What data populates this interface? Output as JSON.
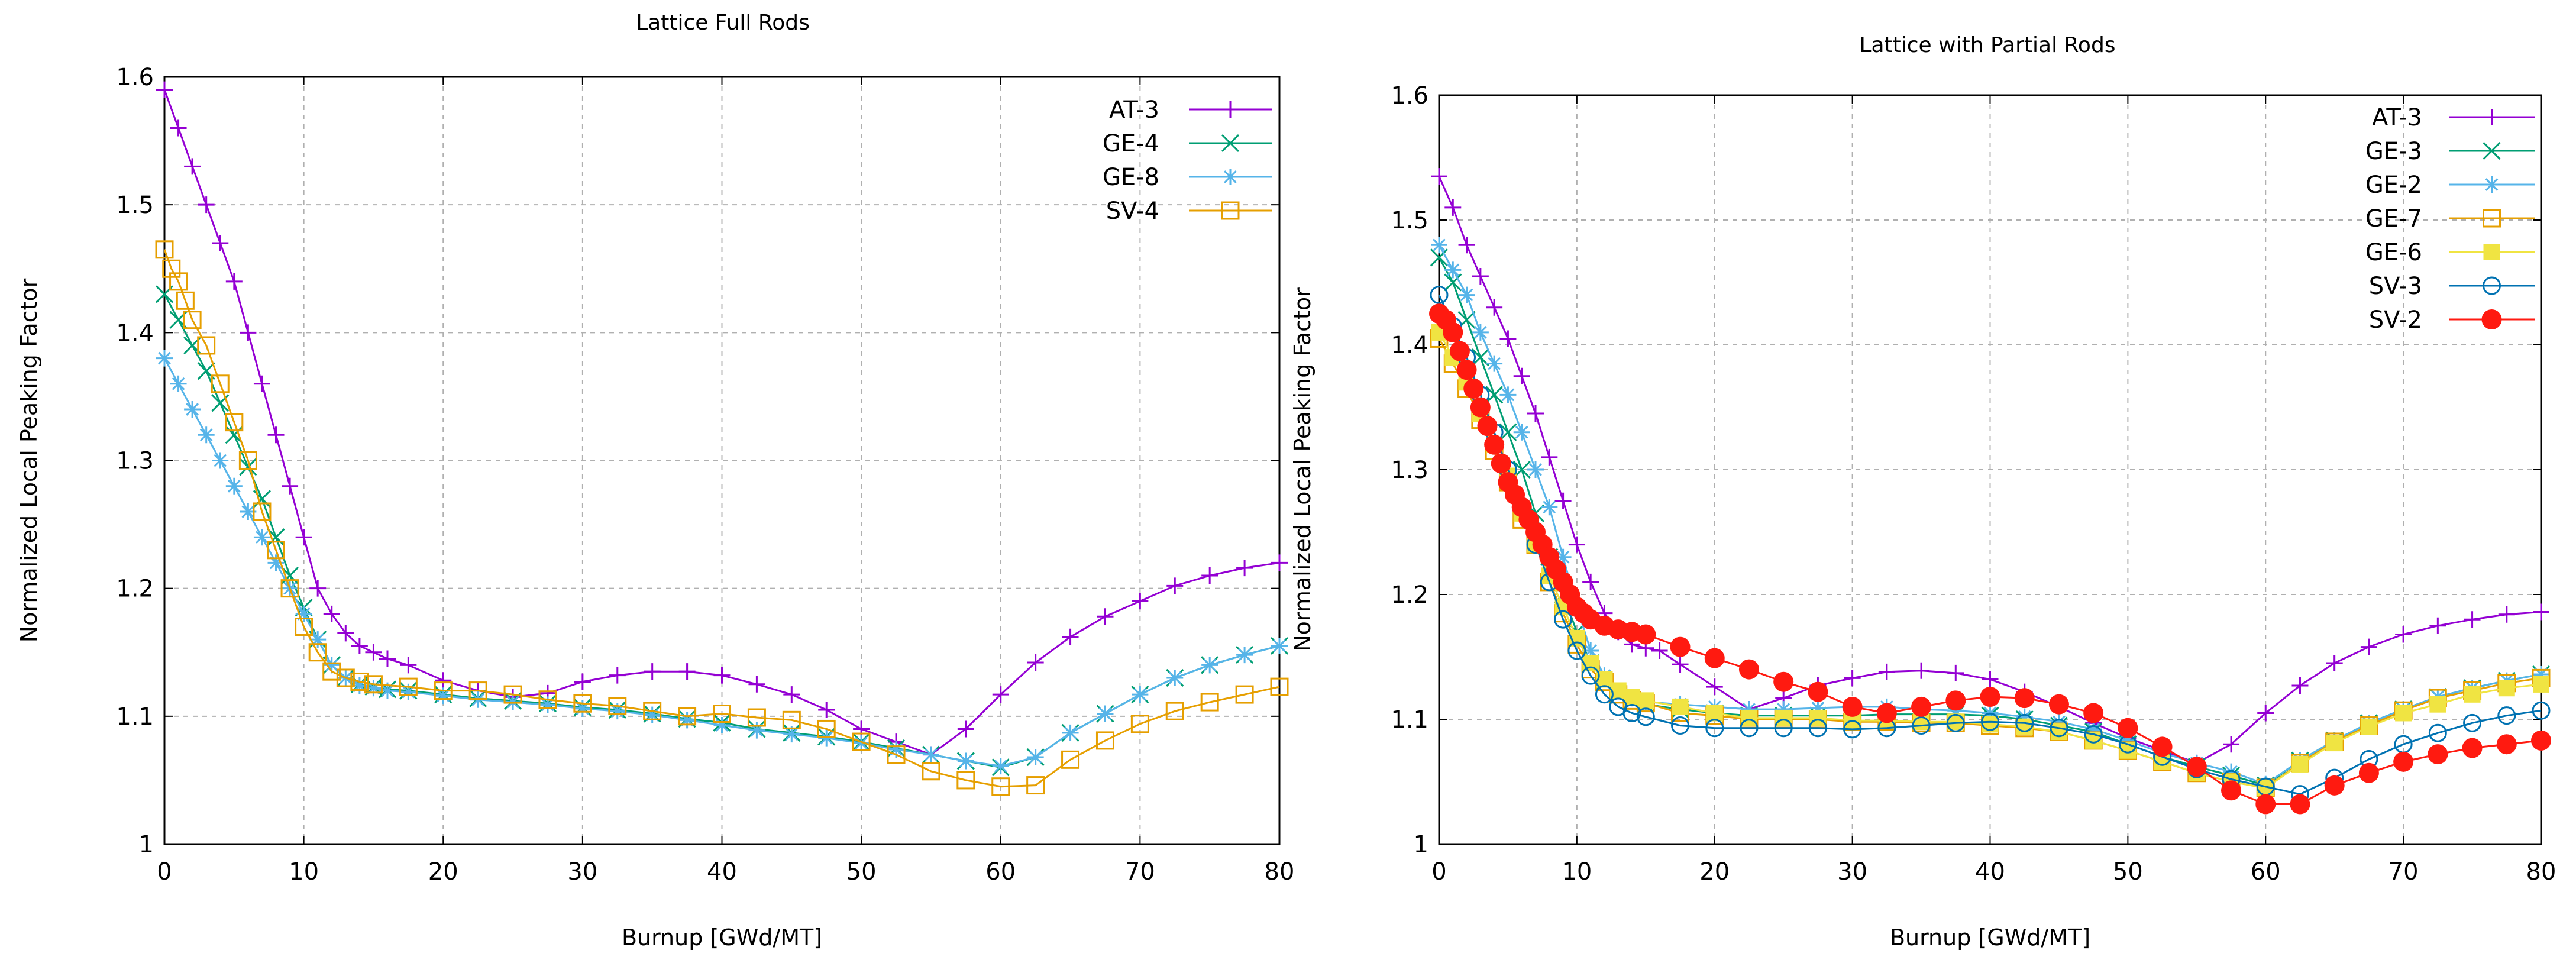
{
  "chart_data": [
    {
      "type": "line",
      "title": "Lattice Full Rods",
      "xlabel": "Burnup [GWd/MT]",
      "ylabel": "Normalized Local Peaking Factor",
      "xlim": [
        0,
        80
      ],
      "ylim": [
        1.0,
        1.6
      ],
      "xticks": [
        "0",
        "10",
        "20",
        "30",
        "40",
        "50",
        "60",
        "70",
        "80"
      ],
      "yticks": [
        "1",
        "1.1",
        "1.2",
        "1.3",
        "1.4",
        "1.5",
        "1.6"
      ],
      "grid": true,
      "legend_position": "top-right",
      "series": [
        {
          "name": "AT-3",
          "color": "#9400d3",
          "marker": "plus",
          "x": [
            0,
            1,
            2,
            3,
            4,
            5,
            6,
            7,
            8,
            9,
            10,
            11,
            12,
            13,
            14,
            15,
            16,
            17.5,
            20,
            22.5,
            25,
            27.5,
            30,
            32.5,
            35,
            37.5,
            40,
            42.5,
            45,
            47.5,
            50,
            52.5,
            55,
            57.5,
            60,
            62.5,
            65,
            67.5,
            70,
            72.5,
            75,
            77.5,
            80
          ],
          "y": [
            1.59,
            1.56,
            1.53,
            1.5,
            1.47,
            1.44,
            1.4,
            1.36,
            1.32,
            1.28,
            1.24,
            1.2,
            1.18,
            1.165,
            1.155,
            1.15,
            1.145,
            1.14,
            1.128,
            1.12,
            1.115,
            1.118,
            1.127,
            1.132,
            1.135,
            1.135,
            1.132,
            1.125,
            1.117,
            1.105,
            1.09,
            1.08,
            1.07,
            1.09,
            1.117,
            1.142,
            1.162,
            1.178,
            1.19,
            1.202,
            1.21,
            1.216,
            1.22
          ]
        },
        {
          "name": "GE-4",
          "color": "#009e73",
          "marker": "cross",
          "x": [
            0,
            1,
            2,
            3,
            4,
            5,
            6,
            7,
            8,
            9,
            10,
            11,
            12,
            13,
            14,
            15,
            16,
            17.5,
            20,
            22.5,
            25,
            27.5,
            30,
            32.5,
            35,
            37.5,
            40,
            42.5,
            45,
            47.5,
            50,
            52.5,
            55,
            57.5,
            60,
            62.5,
            65,
            67.5,
            70,
            72.5,
            75,
            77.5,
            80
          ],
          "y": [
            1.43,
            1.41,
            1.39,
            1.37,
            1.345,
            1.32,
            1.295,
            1.27,
            1.24,
            1.21,
            1.185,
            1.16,
            1.14,
            1.13,
            1.125,
            1.123,
            1.121,
            1.12,
            1.117,
            1.114,
            1.112,
            1.11,
            1.107,
            1.105,
            1.102,
            1.098,
            1.095,
            1.09,
            1.087,
            1.084,
            1.08,
            1.075,
            1.07,
            1.065,
            1.06,
            1.068,
            1.087,
            1.102,
            1.117,
            1.13,
            1.14,
            1.148,
            1.155
          ]
        },
        {
          "name": "GE-8",
          "color": "#56b4e9",
          "marker": "star",
          "x": [
            0,
            1,
            2,
            3,
            4,
            5,
            6,
            7,
            8,
            9,
            10,
            11,
            12,
            13,
            14,
            15,
            16,
            17.5,
            20,
            22.5,
            25,
            27.5,
            30,
            32.5,
            35,
            37.5,
            40,
            42.5,
            45,
            47.5,
            50,
            52.5,
            55,
            57.5,
            60,
            62.5,
            65,
            67.5,
            70,
            72.5,
            75,
            77.5,
            80
          ],
          "y": [
            1.38,
            1.36,
            1.34,
            1.32,
            1.3,
            1.28,
            1.26,
            1.24,
            1.22,
            1.2,
            1.18,
            1.16,
            1.14,
            1.13,
            1.124,
            1.122,
            1.12,
            1.119,
            1.116,
            1.113,
            1.111,
            1.109,
            1.106,
            1.104,
            1.101,
            1.097,
            1.093,
            1.089,
            1.086,
            1.083,
            1.079,
            1.074,
            1.07,
            1.065,
            1.061,
            1.068,
            1.087,
            1.102,
            1.117,
            1.13,
            1.14,
            1.148,
            1.155
          ]
        },
        {
          "name": "SV-4",
          "color": "#e69f00",
          "marker": "square",
          "x": [
            0,
            0.5,
            1,
            1.5,
            2,
            3,
            4,
            5,
            6,
            7,
            8,
            9,
            10,
            11,
            12,
            13,
            14,
            15,
            17.5,
            20,
            22.5,
            25,
            27.5,
            30,
            32.5,
            35,
            37.5,
            40,
            42.5,
            45,
            47.5,
            50,
            52.5,
            55,
            57.5,
            60,
            62.5,
            65,
            67.5,
            70,
            72.5,
            75,
            77.5,
            80
          ],
          "y": [
            1.465,
            1.45,
            1.44,
            1.425,
            1.41,
            1.39,
            1.36,
            1.33,
            1.3,
            1.26,
            1.23,
            1.2,
            1.17,
            1.15,
            1.135,
            1.13,
            1.127,
            1.125,
            1.123,
            1.12,
            1.12,
            1.117,
            1.113,
            1.11,
            1.108,
            1.104,
            1.1,
            1.102,
            1.099,
            1.097,
            1.09,
            1.08,
            1.07,
            1.057,
            1.05,
            1.045,
            1.046,
            1.066,
            1.081,
            1.094,
            1.104,
            1.111,
            1.117,
            1.123
          ]
        }
      ]
    },
    {
      "type": "line",
      "title": "Lattice with Partial Rods",
      "xlabel": "Burnup [GWd/MT]",
      "ylabel": "Normalized Local Peaking Factor",
      "xlim": [
        0,
        80
      ],
      "ylim": [
        1.0,
        1.6
      ],
      "xticks": [
        "0",
        "10",
        "20",
        "30",
        "40",
        "50",
        "60",
        "70",
        "80"
      ],
      "yticks": [
        "1",
        "1.1",
        "1.2",
        "1.3",
        "1.4",
        "1.5",
        "1.6"
      ],
      "grid": true,
      "legend_position": "top-right",
      "series": [
        {
          "name": "AT-3",
          "color": "#9400d3",
          "marker": "plus",
          "x": [
            0,
            1,
            2,
            3,
            4,
            5,
            6,
            7,
            8,
            9,
            10,
            11,
            12,
            13,
            14,
            15,
            16,
            17.5,
            20,
            22.5,
            25,
            27.5,
            30,
            32.5,
            35,
            37.5,
            40,
            42.5,
            45,
            47.5,
            50,
            52.5,
            55,
            57.5,
            60,
            62.5,
            65,
            67.5,
            70,
            72.5,
            75,
            77.5,
            80
          ],
          "y": [
            1.535,
            1.51,
            1.48,
            1.455,
            1.43,
            1.405,
            1.375,
            1.345,
            1.31,
            1.275,
            1.24,
            1.21,
            1.185,
            1.17,
            1.16,
            1.157,
            1.155,
            1.144,
            1.126,
            1.108,
            1.117,
            1.127,
            1.133,
            1.138,
            1.139,
            1.137,
            1.132,
            1.122,
            1.11,
            1.097,
            1.085,
            1.075,
            1.065,
            1.08,
            1.105,
            1.127,
            1.145,
            1.158,
            1.168,
            1.175,
            1.18,
            1.184,
            1.186
          ]
        },
        {
          "name": "GE-3",
          "color": "#009e73",
          "marker": "cross",
          "x": [
            0,
            1,
            2,
            3,
            4,
            5,
            6,
            7,
            8,
            9,
            10,
            11,
            12,
            13,
            14,
            15,
            17.5,
            20,
            22.5,
            25,
            27.5,
            30,
            32.5,
            35,
            37.5,
            40,
            42.5,
            45,
            47.5,
            50,
            52.5,
            55,
            57.5,
            60,
            62.5,
            65,
            67.5,
            70,
            72.5,
            75,
            77.5,
            80
          ],
          "y": [
            1.47,
            1.45,
            1.42,
            1.39,
            1.36,
            1.33,
            1.3,
            1.265,
            1.23,
            1.2,
            1.17,
            1.145,
            1.13,
            1.12,
            1.115,
            1.112,
            1.108,
            1.105,
            1.103,
            1.103,
            1.103,
            1.103,
            1.104,
            1.104,
            1.104,
            1.103,
            1.1,
            1.095,
            1.09,
            1.08,
            1.07,
            1.062,
            1.055,
            1.047,
            1.067,
            1.083,
            1.097,
            1.108,
            1.118,
            1.125,
            1.131,
            1.136
          ]
        },
        {
          "name": "GE-2",
          "color": "#56b4e9",
          "marker": "star",
          "x": [
            0,
            1,
            2,
            3,
            4,
            5,
            6,
            7,
            8,
            9,
            10,
            11,
            12,
            13,
            14,
            15,
            17.5,
            20,
            22.5,
            25,
            27.5,
            30,
            32.5,
            35,
            37.5,
            40,
            42.5,
            45,
            47.5,
            50,
            52.5,
            55,
            57.5,
            60,
            62.5,
            65,
            67.5,
            70,
            72.5,
            75,
            77.5,
            80
          ],
          "y": [
            1.48,
            1.46,
            1.44,
            1.41,
            1.385,
            1.36,
            1.33,
            1.3,
            1.27,
            1.23,
            1.19,
            1.155,
            1.135,
            1.123,
            1.117,
            1.114,
            1.112,
            1.11,
            1.108,
            1.108,
            1.109,
            1.11,
            1.11,
            1.108,
            1.107,
            1.105,
            1.102,
            1.098,
            1.092,
            1.083,
            1.073,
            1.065,
            1.058,
            1.048,
            1.067,
            1.083,
            1.097,
            1.108,
            1.118,
            1.125,
            1.131,
            1.136
          ]
        },
        {
          "name": "GE-7",
          "color": "#e69f00",
          "marker": "square",
          "x": [
            0,
            1,
            2,
            3,
            4,
            5,
            6,
            7,
            8,
            9,
            10,
            11,
            12,
            13,
            14,
            15,
            17.5,
            20,
            22.5,
            25,
            27.5,
            30,
            32.5,
            35,
            37.5,
            40,
            42.5,
            45,
            47.5,
            50,
            52.5,
            55,
            57.5,
            60,
            62.5,
            65,
            67.5,
            70,
            72.5,
            75,
            77.5,
            80
          ],
          "y": [
            1.405,
            1.385,
            1.365,
            1.34,
            1.315,
            1.29,
            1.26,
            1.24,
            1.21,
            1.185,
            1.16,
            1.14,
            1.13,
            1.12,
            1.115,
            1.113,
            1.105,
            1.103,
            1.1,
            1.1,
            1.1,
            1.098,
            1.098,
            1.097,
            1.097,
            1.095,
            1.093,
            1.09,
            1.083,
            1.075,
            1.066,
            1.057,
            1.05,
            1.045,
            1.065,
            1.082,
            1.095,
            1.107,
            1.117,
            1.123,
            1.129,
            1.133
          ]
        },
        {
          "name": "GE-6",
          "color": "#f0e442",
          "marker": "filled-square",
          "x": [
            0,
            1,
            2,
            3,
            4,
            5,
            6,
            7,
            8,
            9,
            10,
            11,
            12,
            13,
            14,
            15,
            17.5,
            20,
            22.5,
            25,
            27.5,
            30,
            32.5,
            35,
            37.5,
            40,
            42.5,
            45,
            47.5,
            50,
            52.5,
            55,
            57.5,
            60,
            62.5,
            65,
            67.5,
            70,
            72.5,
            75,
            77.5,
            80
          ],
          "y": [
            1.41,
            1.39,
            1.37,
            1.345,
            1.32,
            1.295,
            1.265,
            1.24,
            1.215,
            1.19,
            1.165,
            1.145,
            1.132,
            1.123,
            1.118,
            1.115,
            1.11,
            1.105,
            1.101,
            1.101,
            1.101,
            1.099,
            1.099,
            1.098,
            1.098,
            1.096,
            1.094,
            1.09,
            1.083,
            1.075,
            1.066,
            1.057,
            1.05,
            1.045,
            1.064,
            1.081,
            1.094,
            1.105,
            1.112,
            1.12,
            1.125,
            1.128
          ]
        },
        {
          "name": "SV-3",
          "color": "#0072b2",
          "marker": "circle",
          "x": [
            0,
            1,
            2,
            3,
            4,
            5,
            6,
            7,
            8,
            9,
            10,
            11,
            12,
            13,
            14,
            15,
            17.5,
            20,
            22.5,
            25,
            27.5,
            30,
            32.5,
            35,
            37.5,
            40,
            42.5,
            45,
            47.5,
            50,
            52.5,
            55,
            57.5,
            60,
            62.5,
            65,
            67.5,
            70,
            72.5,
            75,
            77.5,
            80
          ],
          "y": [
            1.44,
            1.415,
            1.39,
            1.36,
            1.33,
            1.3,
            1.27,
            1.24,
            1.21,
            1.18,
            1.155,
            1.135,
            1.12,
            1.11,
            1.105,
            1.102,
            1.095,
            1.093,
            1.093,
            1.093,
            1.093,
            1.092,
            1.093,
            1.095,
            1.097,
            1.098,
            1.097,
            1.093,
            1.088,
            1.08,
            1.07,
            1.06,
            1.052,
            1.046,
            1.04,
            1.053,
            1.068,
            1.08,
            1.089,
            1.097,
            1.103,
            1.107
          ]
        },
        {
          "name": "SV-2",
          "color": "#ff1a10",
          "marker": "filled-circle",
          "x": [
            0,
            0.5,
            1,
            1.5,
            2,
            2.5,
            3,
            3.5,
            4,
            4.5,
            5,
            5.5,
            6,
            6.5,
            7,
            7.5,
            8,
            8.5,
            9,
            9.5,
            10,
            10.5,
            11,
            12,
            13,
            14,
            15,
            17.5,
            20,
            22.5,
            25,
            27.5,
            30,
            32.5,
            35,
            37.5,
            40,
            42.5,
            45,
            47.5,
            50,
            52.5,
            55,
            57.5,
            60,
            62.5,
            65,
            67.5,
            70,
            72.5,
            75,
            77.5,
            80
          ],
          "y": [
            1.425,
            1.42,
            1.41,
            1.395,
            1.38,
            1.365,
            1.35,
            1.335,
            1.32,
            1.305,
            1.29,
            1.28,
            1.27,
            1.26,
            1.25,
            1.24,
            1.23,
            1.22,
            1.21,
            1.2,
            1.19,
            1.185,
            1.18,
            1.175,
            1.172,
            1.17,
            1.168,
            1.158,
            1.149,
            1.14,
            1.13,
            1.122,
            1.11,
            1.105,
            1.11,
            1.115,
            1.118,
            1.117,
            1.112,
            1.105,
            1.093,
            1.078,
            1.062,
            1.043,
            1.032,
            1.032,
            1.047,
            1.057,
            1.066,
            1.072,
            1.077,
            1.08,
            1.083
          ]
        }
      ]
    }
  ]
}
